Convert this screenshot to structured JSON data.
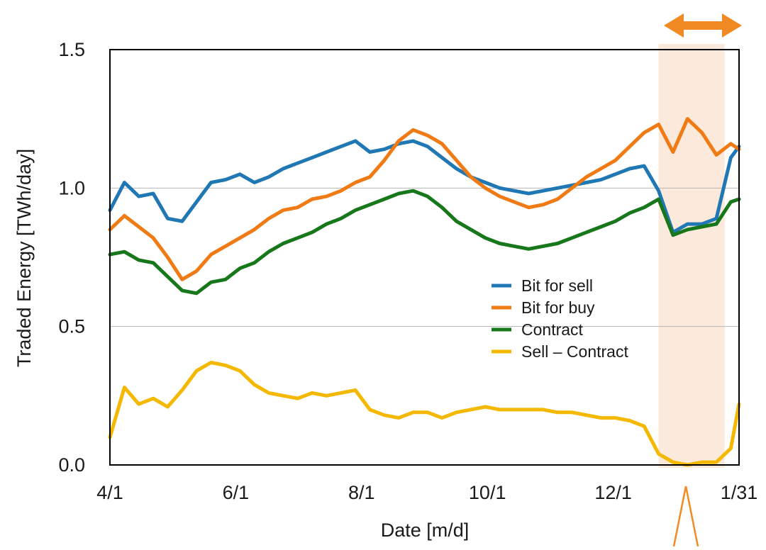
{
  "chart_data": {
    "type": "line",
    "title": "",
    "xlabel": "Date [m/d]",
    "ylabel": "Traded Energy [TWh/day]",
    "x_ticks": [
      "4/1",
      "6/1",
      "8/1",
      "10/1",
      "12/1",
      "1/31"
    ],
    "x_tick_dates": [
      "2019-04-01",
      "2019-06-01",
      "2019-08-01",
      "2019-10-01",
      "2019-12-01",
      "2020-01-31"
    ],
    "x_range": [
      "2019-04-01",
      "2020-01-31"
    ],
    "y_ticks": [
      "0.0",
      "0.5",
      "1.0",
      "1.5"
    ],
    "ylim": [
      0,
      1.5
    ],
    "grid": "horizontal lines at 0.5 and 1.0",
    "legend_position": "center-right",
    "highlight_region": {
      "start": "2019-12-23",
      "end": "2020-01-24",
      "color": "#fbeadb"
    },
    "annotation_arrow": "double-headed arrow above the highlighted period",
    "annotation_color": "#f28a24",
    "series": [
      {
        "name": "Bit for sell",
        "color": "#1f77b4",
        "points": [
          [
            "2019-04-01",
            0.92
          ],
          [
            "2019-04-08",
            1.02
          ],
          [
            "2019-04-15",
            0.97
          ],
          [
            "2019-04-22",
            0.98
          ],
          [
            "2019-04-29",
            0.89
          ],
          [
            "2019-05-06",
            0.88
          ],
          [
            "2019-05-13",
            0.95
          ],
          [
            "2019-05-20",
            1.02
          ],
          [
            "2019-05-27",
            1.03
          ],
          [
            "2019-06-03",
            1.05
          ],
          [
            "2019-06-10",
            1.02
          ],
          [
            "2019-06-17",
            1.04
          ],
          [
            "2019-06-24",
            1.07
          ],
          [
            "2019-07-01",
            1.09
          ],
          [
            "2019-07-08",
            1.11
          ],
          [
            "2019-07-15",
            1.13
          ],
          [
            "2019-07-22",
            1.15
          ],
          [
            "2019-07-29",
            1.17
          ],
          [
            "2019-08-05",
            1.13
          ],
          [
            "2019-08-12",
            1.14
          ],
          [
            "2019-08-19",
            1.16
          ],
          [
            "2019-08-26",
            1.17
          ],
          [
            "2019-09-02",
            1.15
          ],
          [
            "2019-09-09",
            1.11
          ],
          [
            "2019-09-16",
            1.07
          ],
          [
            "2019-09-23",
            1.04
          ],
          [
            "2019-09-30",
            1.02
          ],
          [
            "2019-10-07",
            1.0
          ],
          [
            "2019-10-14",
            0.99
          ],
          [
            "2019-10-21",
            0.98
          ],
          [
            "2019-10-28",
            0.99
          ],
          [
            "2019-11-04",
            1.0
          ],
          [
            "2019-11-11",
            1.01
          ],
          [
            "2019-11-18",
            1.02
          ],
          [
            "2019-11-25",
            1.03
          ],
          [
            "2019-12-02",
            1.05
          ],
          [
            "2019-12-09",
            1.07
          ],
          [
            "2019-12-16",
            1.08
          ],
          [
            "2019-12-23",
            0.99
          ],
          [
            "2019-12-30",
            0.84
          ],
          [
            "2020-01-06",
            0.87
          ],
          [
            "2020-01-13",
            0.87
          ],
          [
            "2020-01-20",
            0.89
          ],
          [
            "2020-01-27",
            1.11
          ],
          [
            "2020-01-31",
            1.15
          ]
        ]
      },
      {
        "name": "Bit for buy",
        "color": "#f07a14",
        "points": [
          [
            "2019-04-01",
            0.85
          ],
          [
            "2019-04-08",
            0.9
          ],
          [
            "2019-04-15",
            0.86
          ],
          [
            "2019-04-22",
            0.82
          ],
          [
            "2019-04-29",
            0.75
          ],
          [
            "2019-05-06",
            0.67
          ],
          [
            "2019-05-13",
            0.7
          ],
          [
            "2019-05-20",
            0.76
          ],
          [
            "2019-05-27",
            0.79
          ],
          [
            "2019-06-03",
            0.82
          ],
          [
            "2019-06-10",
            0.85
          ],
          [
            "2019-06-17",
            0.89
          ],
          [
            "2019-06-24",
            0.92
          ],
          [
            "2019-07-01",
            0.93
          ],
          [
            "2019-07-08",
            0.96
          ],
          [
            "2019-07-15",
            0.97
          ],
          [
            "2019-07-22",
            0.99
          ],
          [
            "2019-07-29",
            1.02
          ],
          [
            "2019-08-05",
            1.04
          ],
          [
            "2019-08-12",
            1.1
          ],
          [
            "2019-08-19",
            1.17
          ],
          [
            "2019-08-26",
            1.21
          ],
          [
            "2019-09-02",
            1.19
          ],
          [
            "2019-09-09",
            1.16
          ],
          [
            "2019-09-16",
            1.1
          ],
          [
            "2019-09-23",
            1.04
          ],
          [
            "2019-09-30",
            1.0
          ],
          [
            "2019-10-07",
            0.97
          ],
          [
            "2019-10-14",
            0.95
          ],
          [
            "2019-10-21",
            0.93
          ],
          [
            "2019-10-28",
            0.94
          ],
          [
            "2019-11-04",
            0.96
          ],
          [
            "2019-11-11",
            1.0
          ],
          [
            "2019-11-18",
            1.04
          ],
          [
            "2019-11-25",
            1.07
          ],
          [
            "2019-12-02",
            1.1
          ],
          [
            "2019-12-09",
            1.15
          ],
          [
            "2019-12-16",
            1.2
          ],
          [
            "2019-12-23",
            1.23
          ],
          [
            "2019-12-30",
            1.13
          ],
          [
            "2020-01-06",
            1.25
          ],
          [
            "2020-01-13",
            1.2
          ],
          [
            "2020-01-20",
            1.12
          ],
          [
            "2020-01-27",
            1.16
          ],
          [
            "2020-01-31",
            1.14
          ]
        ]
      },
      {
        "name": "Contract",
        "color": "#17771b",
        "points": [
          [
            "2019-04-01",
            0.76
          ],
          [
            "2019-04-08",
            0.77
          ],
          [
            "2019-04-15",
            0.74
          ],
          [
            "2019-04-22",
            0.73
          ],
          [
            "2019-04-29",
            0.68
          ],
          [
            "2019-05-06",
            0.63
          ],
          [
            "2019-05-13",
            0.62
          ],
          [
            "2019-05-20",
            0.66
          ],
          [
            "2019-05-27",
            0.67
          ],
          [
            "2019-06-03",
            0.71
          ],
          [
            "2019-06-10",
            0.73
          ],
          [
            "2019-06-17",
            0.77
          ],
          [
            "2019-06-24",
            0.8
          ],
          [
            "2019-07-01",
            0.82
          ],
          [
            "2019-07-08",
            0.84
          ],
          [
            "2019-07-15",
            0.87
          ],
          [
            "2019-07-22",
            0.89
          ],
          [
            "2019-07-29",
            0.92
          ],
          [
            "2019-08-05",
            0.94
          ],
          [
            "2019-08-12",
            0.96
          ],
          [
            "2019-08-19",
            0.98
          ],
          [
            "2019-08-26",
            0.99
          ],
          [
            "2019-09-02",
            0.97
          ],
          [
            "2019-09-09",
            0.93
          ],
          [
            "2019-09-16",
            0.88
          ],
          [
            "2019-09-23",
            0.85
          ],
          [
            "2019-09-30",
            0.82
          ],
          [
            "2019-10-07",
            0.8
          ],
          [
            "2019-10-14",
            0.79
          ],
          [
            "2019-10-21",
            0.78
          ],
          [
            "2019-10-28",
            0.79
          ],
          [
            "2019-11-04",
            0.8
          ],
          [
            "2019-11-11",
            0.82
          ],
          [
            "2019-11-18",
            0.84
          ],
          [
            "2019-11-25",
            0.86
          ],
          [
            "2019-12-02",
            0.88
          ],
          [
            "2019-12-09",
            0.91
          ],
          [
            "2019-12-16",
            0.93
          ],
          [
            "2019-12-23",
            0.96
          ],
          [
            "2019-12-30",
            0.83
          ],
          [
            "2020-01-06",
            0.85
          ],
          [
            "2020-01-13",
            0.86
          ],
          [
            "2020-01-20",
            0.87
          ],
          [
            "2020-01-27",
            0.95
          ],
          [
            "2020-01-31",
            0.96
          ]
        ]
      },
      {
        "name": "Sell – Contract",
        "color": "#f5b800",
        "points": [
          [
            "2019-04-01",
            0.1
          ],
          [
            "2019-04-08",
            0.28
          ],
          [
            "2019-04-15",
            0.22
          ],
          [
            "2019-04-22",
            0.24
          ],
          [
            "2019-04-29",
            0.21
          ],
          [
            "2019-05-06",
            0.27
          ],
          [
            "2019-05-13",
            0.34
          ],
          [
            "2019-05-20",
            0.37
          ],
          [
            "2019-05-27",
            0.36
          ],
          [
            "2019-06-03",
            0.34
          ],
          [
            "2019-06-10",
            0.29
          ],
          [
            "2019-06-17",
            0.26
          ],
          [
            "2019-06-24",
            0.25
          ],
          [
            "2019-07-01",
            0.24
          ],
          [
            "2019-07-08",
            0.26
          ],
          [
            "2019-07-15",
            0.25
          ],
          [
            "2019-07-22",
            0.26
          ],
          [
            "2019-07-29",
            0.27
          ],
          [
            "2019-08-05",
            0.2
          ],
          [
            "2019-08-12",
            0.18
          ],
          [
            "2019-08-19",
            0.17
          ],
          [
            "2019-08-26",
            0.19
          ],
          [
            "2019-09-02",
            0.19
          ],
          [
            "2019-09-09",
            0.17
          ],
          [
            "2019-09-16",
            0.19
          ],
          [
            "2019-09-23",
            0.2
          ],
          [
            "2019-09-30",
            0.21
          ],
          [
            "2019-10-07",
            0.2
          ],
          [
            "2019-10-14",
            0.2
          ],
          [
            "2019-10-21",
            0.2
          ],
          [
            "2019-10-28",
            0.2
          ],
          [
            "2019-11-04",
            0.19
          ],
          [
            "2019-11-11",
            0.19
          ],
          [
            "2019-11-18",
            0.18
          ],
          [
            "2019-11-25",
            0.17
          ],
          [
            "2019-12-02",
            0.17
          ],
          [
            "2019-12-09",
            0.16
          ],
          [
            "2019-12-16",
            0.14
          ],
          [
            "2019-12-23",
            0.04
          ],
          [
            "2019-12-30",
            0.01
          ],
          [
            "2020-01-06",
            0.0
          ],
          [
            "2020-01-13",
            0.01
          ],
          [
            "2020-01-20",
            0.01
          ],
          [
            "2020-01-27",
            0.06
          ],
          [
            "2020-01-31",
            0.22
          ]
        ]
      }
    ]
  }
}
